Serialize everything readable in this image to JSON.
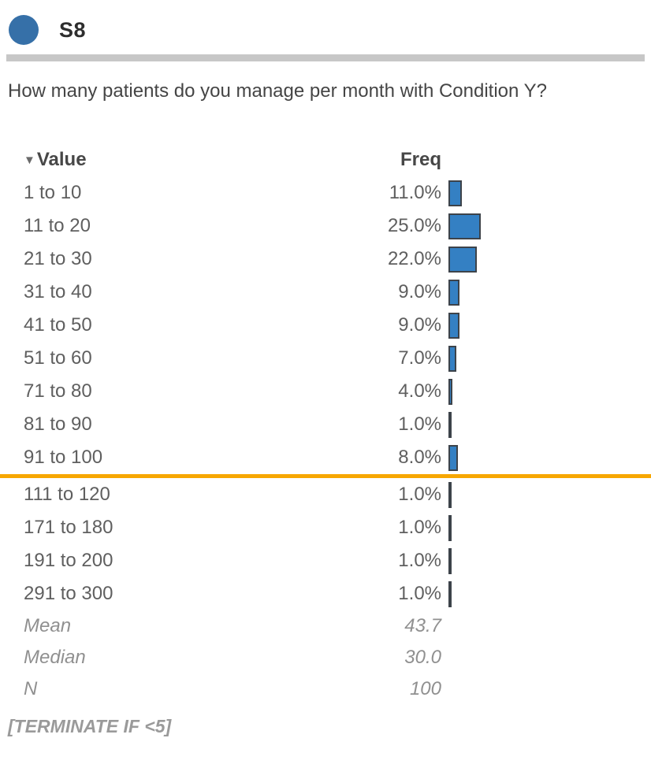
{
  "header": {
    "question_id": "S8"
  },
  "question": {
    "text": "How many patients do you manage per month with Condition Y?"
  },
  "table": {
    "value_header": "Value",
    "freq_header": "Freq",
    "sort_icon": "▼",
    "cutoff_after_index": 8,
    "rows": [
      {
        "value": "1 to 10",
        "freq_label": "11.0%",
        "pct": 11
      },
      {
        "value": "11 to 20",
        "freq_label": "25.0%",
        "pct": 25
      },
      {
        "value": "21 to 30",
        "freq_label": "22.0%",
        "pct": 22
      },
      {
        "value": "31 to 40",
        "freq_label": "9.0%",
        "pct": 9
      },
      {
        "value": "41 to 50",
        "freq_label": "9.0%",
        "pct": 9
      },
      {
        "value": "51 to 60",
        "freq_label": "7.0%",
        "pct": 7
      },
      {
        "value": "71 to 80",
        "freq_label": "4.0%",
        "pct": 4
      },
      {
        "value": "81 to 90",
        "freq_label": "1.0%",
        "pct": 1
      },
      {
        "value": "91 to 100",
        "freq_label": "8.0%",
        "pct": 8
      },
      {
        "value": "111 to 120",
        "freq_label": "1.0%",
        "pct": 1
      },
      {
        "value": "171 to 180",
        "freq_label": "1.0%",
        "pct": 1
      },
      {
        "value": "191 to 200",
        "freq_label": "1.0%",
        "pct": 1
      },
      {
        "value": "291 to 300",
        "freq_label": "1.0%",
        "pct": 1
      }
    ]
  },
  "stats": [
    {
      "label": "Mean",
      "value": "43.7"
    },
    {
      "label": "Median",
      "value": "30.0"
    },
    {
      "label": "N",
      "value": "100"
    }
  ],
  "footer": {
    "note": "[TERMINATE IF <5]"
  },
  "colors": {
    "status_dot": "#3670a8",
    "bar_fill": "#3480c3",
    "bar_border": "#3d434a",
    "cutoff_line": "#f7a700",
    "header_divider": "#c7c7c7"
  },
  "chart_data": {
    "type": "bar",
    "orientation": "horizontal",
    "title": "How many patients do you manage per month with Condition Y?",
    "categories": [
      "1 to 10",
      "11 to 20",
      "21 to 30",
      "31 to 40",
      "41 to 50",
      "51 to 60",
      "71 to 80",
      "81 to 90",
      "91 to 100",
      "111 to 120",
      "171 to 180",
      "191 to 200",
      "291 to 300"
    ],
    "values": [
      11.0,
      25.0,
      22.0,
      9.0,
      9.0,
      7.0,
      4.0,
      1.0,
      8.0,
      1.0,
      1.0,
      1.0,
      1.0
    ],
    "unit": "%",
    "value_label_column": "Freq",
    "category_column": "Value",
    "stats": {
      "mean": 43.7,
      "median": 30.0,
      "n": 100
    },
    "annotations": {
      "cutoff_line_after_category": "91 to 100",
      "cutoff_line_color": "#f7a700"
    },
    "legend": false,
    "grid": false
  }
}
